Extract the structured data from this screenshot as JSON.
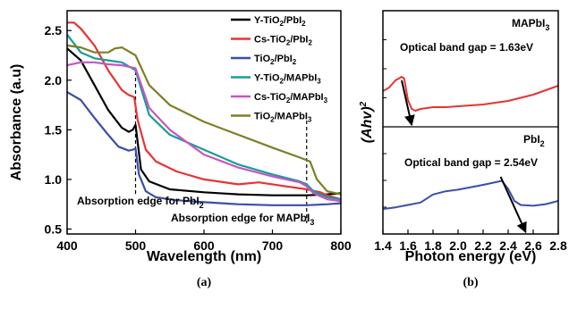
{
  "chart_data": [
    {
      "type": "line",
      "panel": "(a)",
      "xlabel": "Wavelength (nm)",
      "ylabel": "Absorbance (a.u)",
      "xlim": [
        400,
        800
      ],
      "ylim": [
        0.45,
        2.7
      ],
      "xticks": [
        "400",
        "500",
        "600",
        "700",
        "800"
      ],
      "yticks": [
        "0.5",
        "1.0",
        "1.5",
        "2.0",
        "2.5"
      ],
      "legend_position": "top-right",
      "series": [
        {
          "name": "Y-TiO2/PbI2",
          "color": "#000000",
          "x": [
            400,
            420,
            440,
            460,
            480,
            490,
            496,
            500,
            503,
            508,
            520,
            550,
            600,
            650,
            700,
            750,
            780,
            800
          ],
          "y": [
            2.32,
            2.2,
            1.95,
            1.7,
            1.52,
            1.48,
            1.5,
            1.55,
            1.38,
            1.1,
            0.98,
            0.9,
            0.87,
            0.85,
            0.84,
            0.84,
            0.85,
            0.86
          ]
        },
        {
          "name": "Cs-TiO2/PbI2",
          "color": "#e83333",
          "x": [
            400,
            410,
            420,
            440,
            460,
            480,
            490,
            498,
            503,
            515,
            530,
            560,
            600,
            650,
            680,
            720,
            750,
            770,
            780,
            790,
            800
          ],
          "y": [
            2.58,
            2.58,
            2.52,
            2.35,
            2.1,
            1.9,
            1.85,
            1.83,
            1.6,
            1.3,
            1.18,
            1.08,
            1.0,
            0.95,
            0.97,
            0.93,
            0.9,
            0.87,
            0.84,
            0.82,
            0.8
          ]
        },
        {
          "name": "TiO2/PbI2",
          "color": "#3b4ea8",
          "x": [
            400,
            420,
            440,
            460,
            475,
            490,
            496,
            500,
            505,
            515,
            530,
            560,
            600,
            650,
            700,
            750,
            780,
            800
          ],
          "y": [
            1.88,
            1.8,
            1.62,
            1.45,
            1.33,
            1.29,
            1.3,
            1.31,
            1.05,
            0.88,
            0.82,
            0.79,
            0.77,
            0.75,
            0.74,
            0.74,
            0.75,
            0.76
          ]
        },
        {
          "name": "Y-TiO2/MAPbI3",
          "color": "#1a9c9a",
          "x": [
            400,
            420,
            440,
            460,
            480,
            500,
            520,
            550,
            600,
            650,
            700,
            740,
            750,
            760,
            780,
            800
          ],
          "y": [
            2.46,
            2.28,
            2.22,
            2.2,
            2.18,
            2.1,
            1.65,
            1.45,
            1.3,
            1.15,
            1.05,
            0.98,
            0.95,
            0.88,
            0.82,
            0.8
          ]
        },
        {
          "name": "Cs-TiO2/MAPbI3",
          "color": "#c456c4",
          "x": [
            400,
            420,
            440,
            460,
            480,
            500,
            520,
            550,
            600,
            650,
            700,
            740,
            750,
            760,
            780,
            800
          ],
          "y": [
            2.15,
            2.18,
            2.18,
            2.16,
            2.15,
            2.12,
            1.72,
            1.5,
            1.25,
            1.12,
            1.03,
            0.97,
            0.93,
            0.86,
            0.8,
            0.78
          ]
        },
        {
          "name": "TiO2/MAPbI3",
          "color": "#7d7f24",
          "x": [
            400,
            420,
            440,
            460,
            470,
            480,
            500,
            520,
            550,
            600,
            650,
            700,
            740,
            755,
            765,
            780,
            800
          ],
          "y": [
            2.35,
            2.33,
            2.28,
            2.28,
            2.32,
            2.33,
            2.25,
            1.95,
            1.75,
            1.58,
            1.45,
            1.32,
            1.22,
            1.18,
            1.0,
            0.88,
            0.85
          ]
        }
      ],
      "markers": [
        {
          "x": 500,
          "label": "Absorption edge for PbI2"
        },
        {
          "x": 750,
          "label": "Absorption edge for MAPbI3"
        }
      ]
    },
    {
      "type": "line",
      "panel": "(b)",
      "xlabel": "Photon energy (eV)",
      "ylabel": "(Ahv)²",
      "xlim": [
        1.4,
        2.8
      ],
      "xticks": [
        "1.4",
        "1.6",
        "1.8",
        "2.0",
        "2.2",
        "2.4",
        "2.6",
        "2.8"
      ],
      "subplots": [
        {
          "material": "MAPbI3",
          "annotation": "Optical band gap = 1.63eV",
          "color": "#e83333",
          "band_gap": 1.63,
          "x": [
            1.4,
            1.45,
            1.5,
            1.55,
            1.57,
            1.6,
            1.63,
            1.66,
            1.7,
            1.8,
            1.9,
            2.0,
            2.2,
            2.4,
            2.6,
            2.8
          ],
          "y": [
            0.3,
            0.34,
            0.42,
            0.46,
            0.44,
            0.2,
            0.1,
            0.08,
            0.1,
            0.12,
            0.12,
            0.13,
            0.15,
            0.19,
            0.26,
            0.36
          ],
          "tangent": {
            "x": [
              1.55,
              1.63
            ],
            "y": [
              0.42,
              0.0
            ]
          }
        },
        {
          "material": "PbI2",
          "annotation": "Optical band gap = 2.54eV",
          "color": "#3b4ea8",
          "band_gap": 2.54,
          "x": [
            1.4,
            1.5,
            1.6,
            1.7,
            1.8,
            1.9,
            2.0,
            2.2,
            2.35,
            2.4,
            2.45,
            2.5,
            2.6,
            2.7,
            2.8
          ],
          "y": [
            0.2,
            0.22,
            0.25,
            0.28,
            0.38,
            0.42,
            0.44,
            0.5,
            0.55,
            0.45,
            0.3,
            0.25,
            0.24,
            0.26,
            0.3
          ],
          "tangent": {
            "x": [
              2.34,
              2.54
            ],
            "y": [
              0.6,
              0.0
            ]
          }
        }
      ]
    }
  ],
  "legend": [
    {
      "base": "Y-TiO",
      "sub": "2",
      "mid": "/PbI",
      "sub2": "2",
      "color": "#000000"
    },
    {
      "base": "Cs-TiO",
      "sub": "2",
      "mid": "/PbI",
      "sub2": "2",
      "color": "#e83333"
    },
    {
      "base": "TiO",
      "sub": "2",
      "mid": "/PbI",
      "sub2": "2",
      "color": "#3b4ea8"
    },
    {
      "base": "Y-TiO",
      "sub": "2",
      "mid": "/MAPbI",
      "sub2": "3",
      "color": "#1a9c9a"
    },
    {
      "base": "Cs-TiO",
      "sub": "2",
      "mid": "/MAPbI",
      "sub2": "3",
      "color": "#c456c4"
    },
    {
      "base": "TiO",
      "sub": "2",
      "mid": "/MAPbI",
      "sub2": "3",
      "color": "#7d7f24"
    }
  ],
  "text": {
    "cap_a": "(a)",
    "cap_b": "(b)",
    "ylabel_a": "Absorbance (a.u)",
    "xlabel_a": "Wavelength (nm)",
    "edge_pbi2_main": "Absorption edge for PbI",
    "edge_pbi2_sub": "2",
    "edge_mapbi3_main": "Absorption edge for MAPbI",
    "edge_mapbi3_sub": "3",
    "xlabel_b": "Photon energy (eV)",
    "ylabel_b_main": "(Ahv)",
    "ylabel_b_sup": "2",
    "mapbi3_label_main": "MAPbI",
    "mapbi3_label_sub": "3",
    "pbi2_label_main": "PbI",
    "pbi2_label_sub": "2",
    "bandgap_mapbi3": "Optical band gap = 1.63eV",
    "bandgap_pbi2": "Optical band gap = 2.54eV"
  }
}
